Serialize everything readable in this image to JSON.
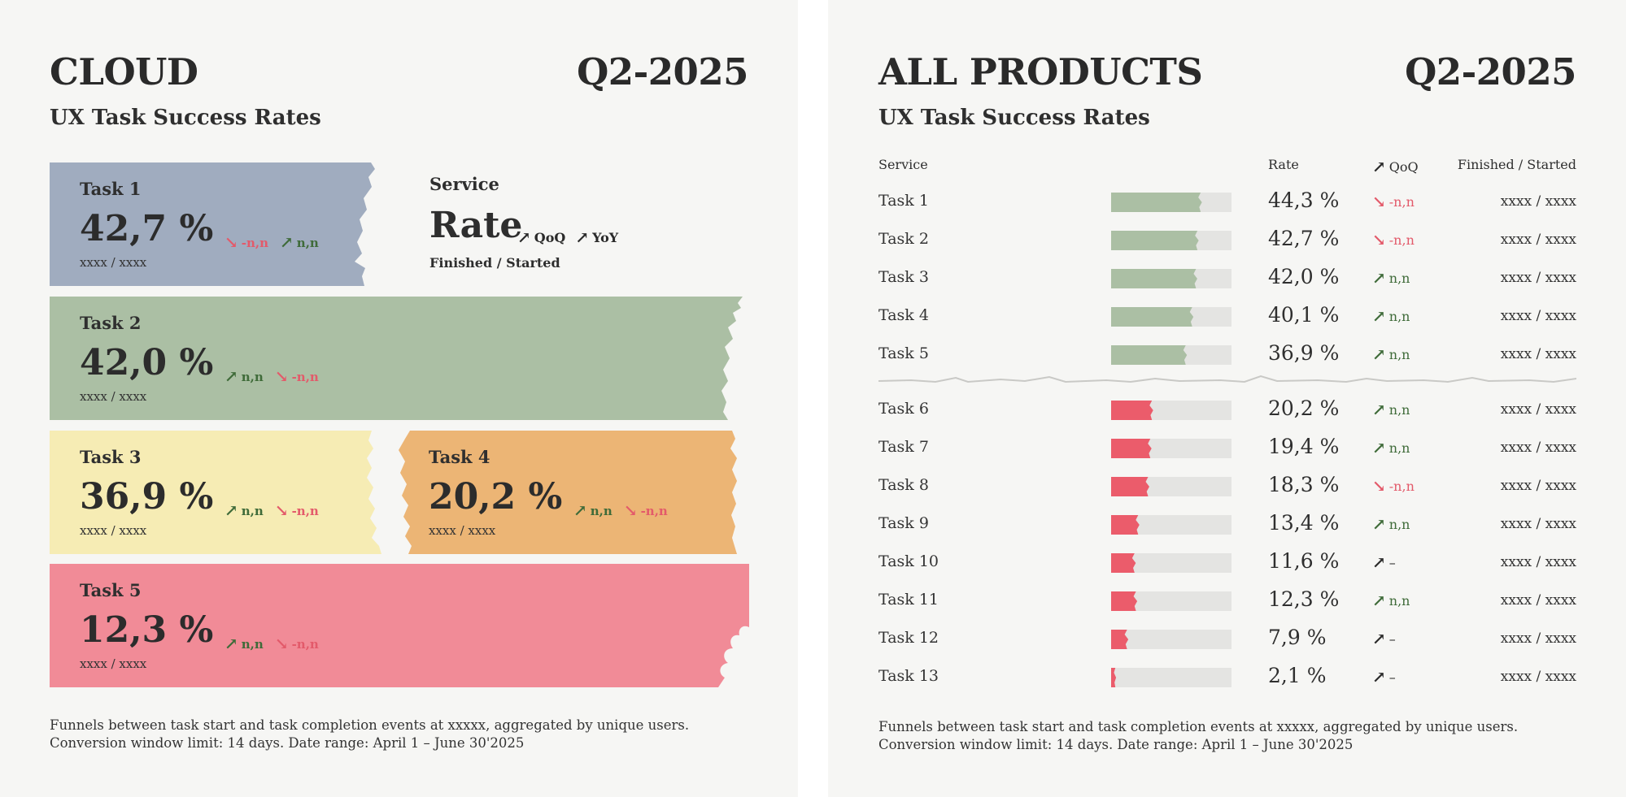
{
  "colors": {
    "panel_bg": "#f6f6f4",
    "card_blue": "#a0acbf",
    "card_green": "#abbfa4",
    "card_yellow": "#f6ecb4",
    "card_orange": "#ecb575",
    "card_pink": "#f18b97",
    "bar_green": "#abbfa4",
    "bar_red": "#eb5c6b",
    "bar_track": "#e4e4e2",
    "trend_up": "#3f6b39",
    "trend_down": "#e35a6a"
  },
  "icons": {
    "up": "arrow-up-right-icon",
    "down": "arrow-down-right-icon"
  },
  "cloud": {
    "title": "CLOUD",
    "period": "Q2-2025",
    "subtitle": "UX Task Success Rates",
    "legend": {
      "service": "Service",
      "rate": "Rate",
      "qoq": "QoQ",
      "yoy": "YoY",
      "finished_started": "Finished / Started"
    },
    "cards": [
      {
        "task": "Task 1",
        "rate": "42,7 %",
        "counts": "xxxx / xxxx",
        "qoq": {
          "dir": "down",
          "text": "-n,n"
        },
        "yoy": {
          "dir": "up",
          "text": "n,n"
        },
        "color": "#a0acbf"
      },
      {
        "task": "Task 2",
        "rate": "42,0 %",
        "counts": "xxxx / xxxx",
        "qoq": {
          "dir": "up",
          "text": "n,n"
        },
        "yoy": {
          "dir": "down",
          "text": "-n,n"
        },
        "color": "#abbfa4"
      },
      {
        "task": "Task 3",
        "rate": "36,9 %",
        "counts": "xxxx / xxxx",
        "qoq": {
          "dir": "up",
          "text": "n,n"
        },
        "yoy": {
          "dir": "down",
          "text": "-n,n"
        },
        "color": "#f6ecb4"
      },
      {
        "task": "Task 4",
        "rate": "20,2 %",
        "counts": "xxxx / xxxx",
        "qoq": {
          "dir": "up",
          "text": "n,n"
        },
        "yoy": {
          "dir": "down",
          "text": "-n,n"
        },
        "color": "#ecb575"
      },
      {
        "task": "Task 5",
        "rate": "12,3 %",
        "counts": "xxxx / xxxx",
        "qoq": {
          "dir": "up",
          "text": "n,n"
        },
        "yoy": {
          "dir": "down",
          "text": "-n,n"
        },
        "color": "#f18b97"
      }
    ],
    "footnote": "Funnels between task start and task completion events at xxxxx, aggregated by unique users. Conversion window limit: 14 days. Date range: April 1 – June 30'2025"
  },
  "all_products": {
    "title": "ALL PRODUCTS",
    "period": "Q2-2025",
    "subtitle": "UX Task Success Rates",
    "headers": {
      "service": "Service",
      "rate": "Rate",
      "qoq": "QoQ",
      "finished_started": "Finished / Started"
    },
    "footnote": "Funnels between task start and task completion events at xxxxx, aggregated by unique users. Conversion window limit: 14 days. Date range: April 1 – June 30'2025"
  },
  "chart_data": {
    "type": "bar",
    "title": "ALL PRODUCTS Q2-2025 — UX Task Success Rates",
    "orientation": "horizontal",
    "xlim": [
      0,
      100
    ],
    "unit": "%",
    "threshold_note": "Tasks 1–5 green, tasks 6–13 red, separated by a torn line",
    "categories": [
      "Task 1",
      "Task 2",
      "Task 3",
      "Task 4",
      "Task 5",
      "Task 6",
      "Task 7",
      "Task 8",
      "Task 9",
      "Task 10",
      "Task 11",
      "Task 12",
      "Task 13"
    ],
    "values": [
      44.3,
      42.7,
      42.0,
      40.1,
      36.9,
      20.2,
      19.4,
      18.3,
      13.4,
      11.6,
      12.3,
      7.9,
      2.1
    ],
    "rows": [
      {
        "task": "Task 1",
        "value": 44.3,
        "rate": "44,3 %",
        "trend": "down",
        "trend_text": "-n,n",
        "fs": "xxxx / xxxx",
        "group": "green"
      },
      {
        "task": "Task 2",
        "value": 42.7,
        "rate": "42,7 %",
        "trend": "down",
        "trend_text": "-n,n",
        "fs": "xxxx / xxxx",
        "group": "green"
      },
      {
        "task": "Task 3",
        "value": 42.0,
        "rate": "42,0 %",
        "trend": "up",
        "trend_text": "n,n",
        "fs": "xxxx / xxxx",
        "group": "green"
      },
      {
        "task": "Task 4",
        "value": 40.1,
        "rate": "40,1 %",
        "trend": "up",
        "trend_text": "n,n",
        "fs": "xxxx / xxxx",
        "group": "green"
      },
      {
        "task": "Task 5",
        "value": 36.9,
        "rate": "36,9 %",
        "trend": "up",
        "trend_text": "n,n",
        "fs": "xxxx / xxxx",
        "group": "green"
      },
      {
        "task": "Task 6",
        "value": 20.2,
        "rate": "20,2 %",
        "trend": "up",
        "trend_text": "n,n",
        "fs": "xxxx / xxxx",
        "group": "red"
      },
      {
        "task": "Task 7",
        "value": 19.4,
        "rate": "19,4 %",
        "trend": "up",
        "trend_text": "n,n",
        "fs": "xxxx / xxxx",
        "group": "red"
      },
      {
        "task": "Task 8",
        "value": 18.3,
        "rate": "18,3 %",
        "trend": "down",
        "trend_text": "-n,n",
        "fs": "xxxx / xxxx",
        "group": "red"
      },
      {
        "task": "Task 9",
        "value": 13.4,
        "rate": "13,4 %",
        "trend": "up",
        "trend_text": "n,n",
        "fs": "xxxx / xxxx",
        "group": "red"
      },
      {
        "task": "Task 10",
        "value": 11.6,
        "rate": "11,6 %",
        "trend": "neutral",
        "trend_text": "–",
        "fs": "xxxx / xxxx",
        "group": "red"
      },
      {
        "task": "Task 11",
        "value": 12.3,
        "rate": "12,3 %",
        "trend": "up",
        "trend_text": "n,n",
        "fs": "xxxx / xxxx",
        "group": "red"
      },
      {
        "task": "Task 12",
        "value": 7.9,
        "rate": "7,9 %",
        "trend": "neutral",
        "trend_text": "–",
        "fs": "xxxx / xxxx",
        "group": "red"
      },
      {
        "task": "Task 13",
        "value": 2.1,
        "rate": "2,1 %",
        "trend": "neutral",
        "trend_text": "–",
        "fs": "xxxx / xxxx",
        "group": "red"
      }
    ]
  }
}
